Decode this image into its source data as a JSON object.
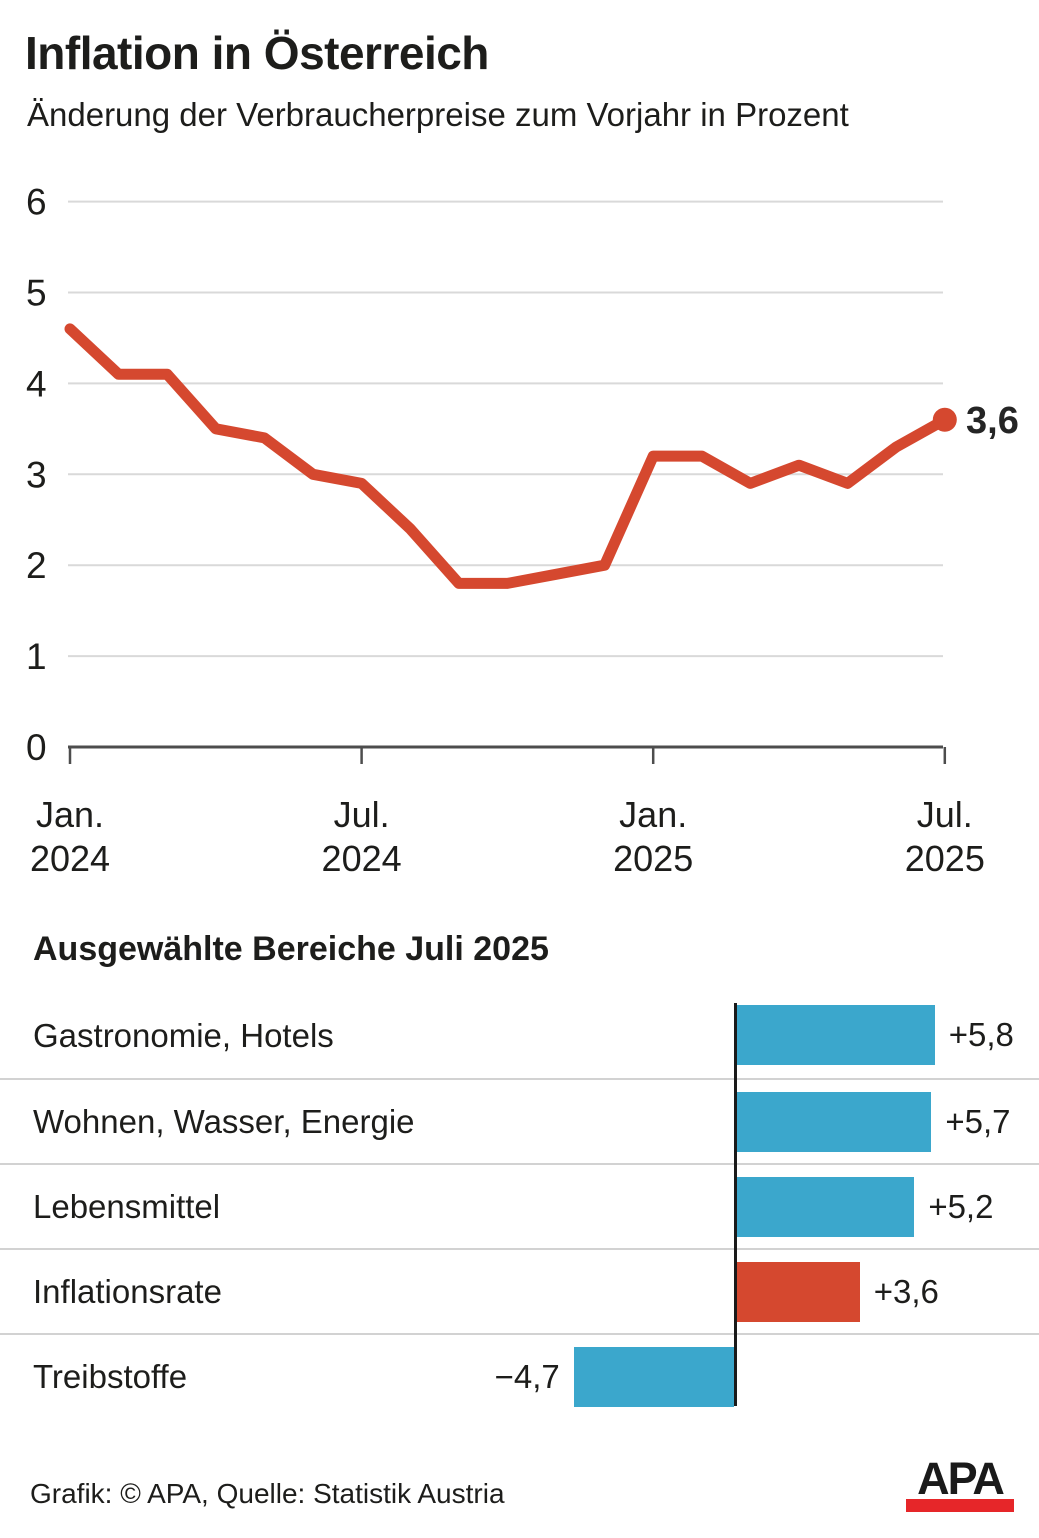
{
  "header": {
    "title": "Inflation in Österreich",
    "subtitle": "Änderung der Verbraucherpreise zum Vorjahr in Prozent"
  },
  "section_heading": "Ausgewählte Bereiche Juli 2025",
  "footer": {
    "credit": "Grafik: © APA, Quelle: Statistik Austria",
    "logo": "APA"
  },
  "colors": {
    "line_red": "#d5482f",
    "bar_blue": "#3ba7cc",
    "bar_red": "#d5482f",
    "grid": "#d9d9d9",
    "axis_gray": "#4d4d4d",
    "text": "#1d1d1b",
    "end_label": "#252525",
    "logo_red": "#e62629"
  },
  "chart_data": [
    {
      "type": "line",
      "title": "Inflation in Österreich",
      "subtitle": "Änderung der Verbraucherpreise zum Vorjahr in Prozent",
      "unit": "Prozent",
      "months": [
        "Jan. 2024",
        "Feb. 2024",
        "März 2024",
        "Apr. 2024",
        "Mai 2024",
        "Juni 2024",
        "Juli 2024",
        "Aug. 2024",
        "Sep. 2024",
        "Okt. 2024",
        "Nov. 2024",
        "Dez. 2024",
        "Jan. 2025",
        "Feb. 2025",
        "März 2025",
        "Apr. 2025",
        "Mai 2025",
        "Juni 2025",
        "Juli 2025"
      ],
      "values": [
        4.6,
        4.1,
        4.1,
        3.5,
        3.4,
        3.0,
        2.9,
        2.4,
        1.8,
        1.8,
        1.9,
        2.0,
        3.2,
        3.2,
        2.9,
        3.1,
        2.9,
        3.3,
        3.6
      ],
      "ylim": [
        0,
        6
      ],
      "yticks": [
        6,
        5,
        4,
        3,
        2,
        1,
        0
      ],
      "x_ticks": [
        {
          "index": 0,
          "line1": "Jan.",
          "line2": "2024"
        },
        {
          "index": 6,
          "line1": "Jul.",
          "line2": "2024"
        },
        {
          "index": 12,
          "line1": "Jan.",
          "line2": "2025"
        },
        {
          "index": 18,
          "line1": "Jul.",
          "line2": "2025"
        }
      ],
      "end_label": "3,6",
      "grid": "horizontal",
      "legend": "none"
    },
    {
      "type": "bar",
      "orientation": "horizontal",
      "title": "Ausgewählte Bereiche Juli 2025",
      "items": [
        {
          "label": "Gastronomie, Hotels",
          "value": 5.8,
          "value_label": "+5,8",
          "color": "blue"
        },
        {
          "label": "Wohnen, Wasser, Energie",
          "value": 5.7,
          "value_label": "+5,7",
          "color": "blue"
        },
        {
          "label": "Lebensmittel",
          "value": 5.2,
          "value_label": "+5,2",
          "color": "blue"
        },
        {
          "label": "Inflationsrate",
          "value": 3.6,
          "value_label": "+3,6",
          "color": "red"
        },
        {
          "label": "Treibstoffe",
          "value": -4.7,
          "value_label": "−4,7",
          "color": "blue"
        }
      ]
    }
  ]
}
